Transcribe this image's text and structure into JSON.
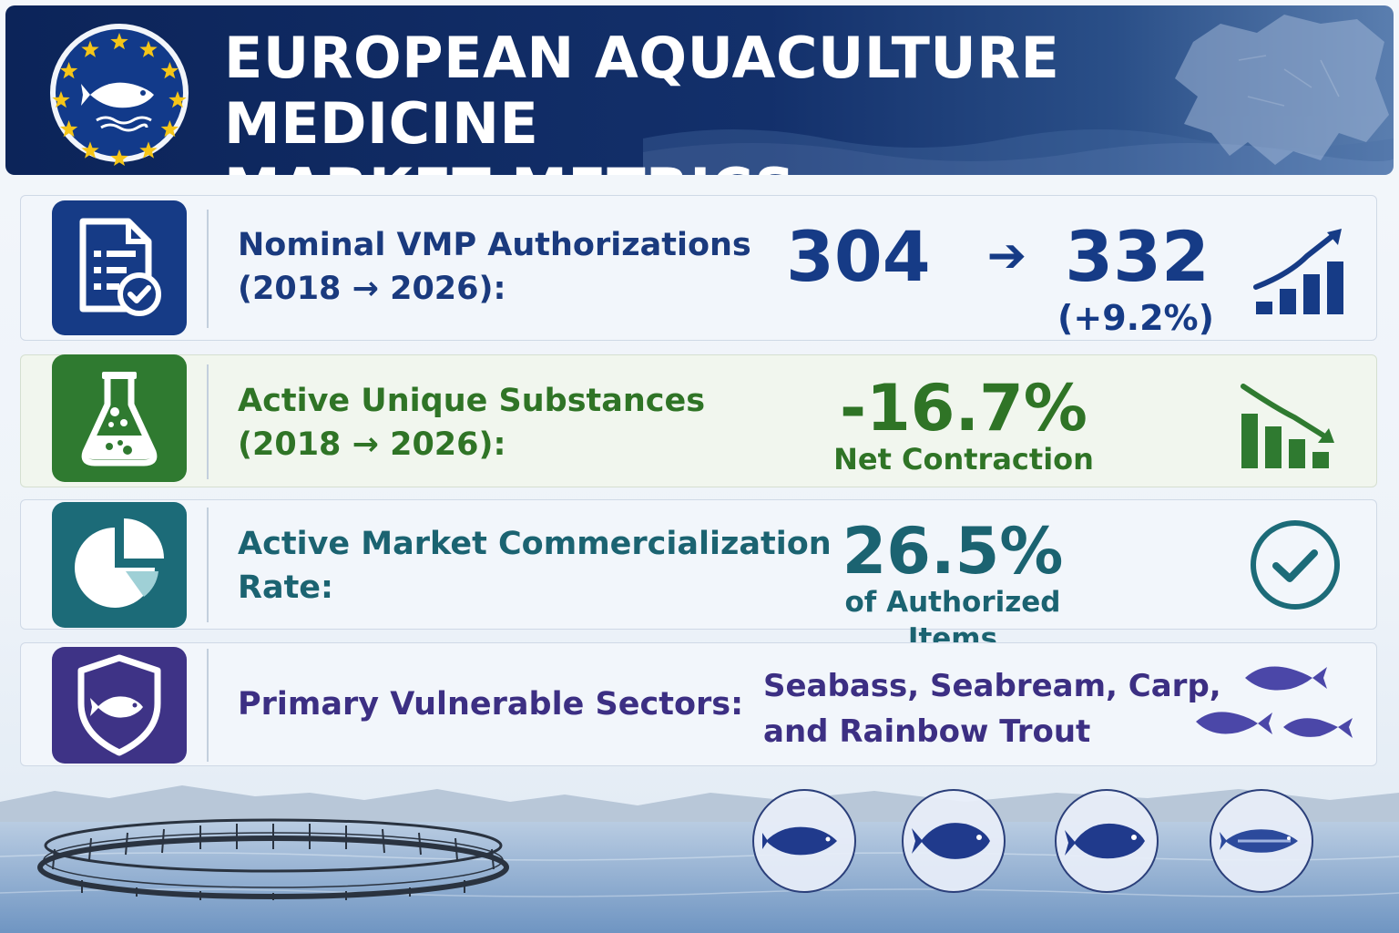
{
  "header": {
    "title_line1": "EUROPEAN AQUACULTURE MEDICINE",
    "title_line2": "MARKET METRICS"
  },
  "metrics": [
    {
      "label_line1": "Nominal VMP Authorizations",
      "label_line2": "(2018 → 2026):",
      "value_from": "304",
      "value_to": "332",
      "change": "(+9.2%)",
      "icon": "document-check-icon",
      "trend_icon": "bar-chart-up-icon",
      "color": "#163b86"
    },
    {
      "label_line1": "Active Unique Substances",
      "label_line2": "(2018 → 2026):",
      "value": "-16.7%",
      "sub": "Net Contraction",
      "icon": "flask-icon",
      "trend_icon": "bar-chart-down-icon",
      "color": "#2f7a30"
    },
    {
      "label_line1": "Active Market Commercialization",
      "label_line2": "Rate:",
      "value": "26.5%",
      "sub": "of Authorized Items",
      "icon": "pie-chart-icon",
      "trend_icon": "check-circle-icon",
      "color": "#1c6b78"
    },
    {
      "label_line1": "Primary Vulnerable Sectors:",
      "value_line1": "Seabass, Seabream, Carp,",
      "value_line2": "and Rainbow Trout",
      "icon": "shield-fish-icon",
      "trend_icon": "fish-school-icon",
      "color": "#3e3386"
    }
  ],
  "badges": [
    "seabass-icon",
    "seabream-icon",
    "carp-icon",
    "trout-icon"
  ]
}
